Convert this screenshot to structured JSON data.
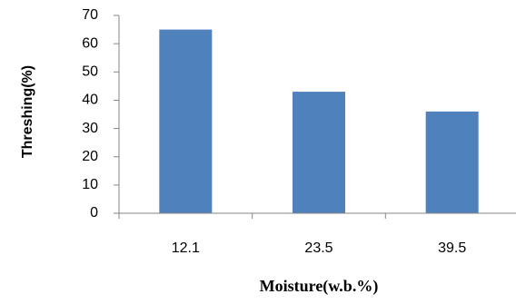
{
  "chart_data": {
    "type": "bar",
    "categories": [
      "12.1",
      "23.5",
      "39.5"
    ],
    "values": [
      65,
      43,
      36
    ],
    "title": "",
    "xlabel": "Moisture(w.b.%)",
    "ylabel": "Threshing(%)",
    "ylim": [
      0,
      70
    ],
    "yticks": [
      "0",
      "10",
      "20",
      "30",
      "40",
      "50",
      "60",
      "70"
    ],
    "grid": false,
    "legend": "none",
    "bar_color": "#4f81bd"
  }
}
